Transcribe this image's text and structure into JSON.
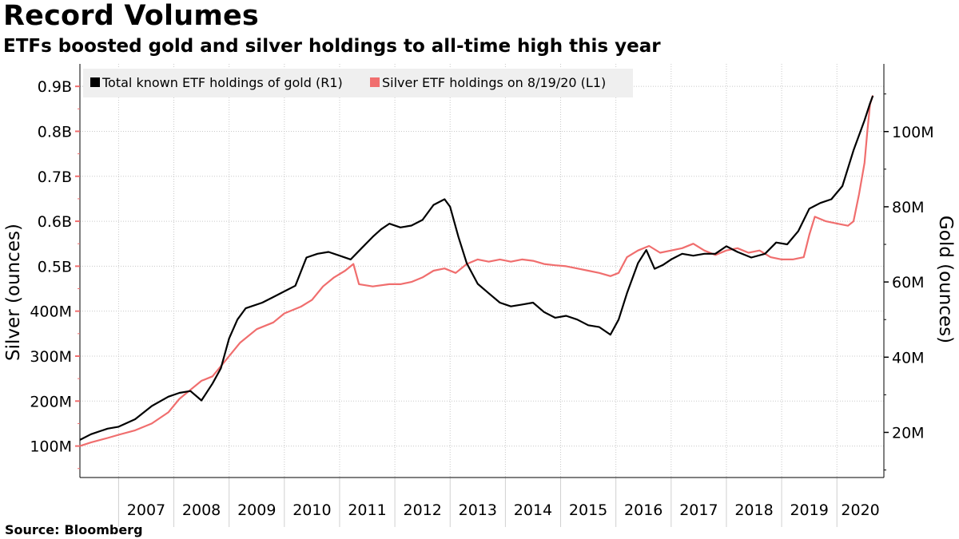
{
  "title": "Record Volumes",
  "subtitle": "ETFs boosted gold and silver holdings to all-time high this year",
  "source": {
    "label": "Source:",
    "value": "Bloomberg"
  },
  "chart_data": {
    "type": "line",
    "title": "Record Volumes",
    "subtitle": "ETFs boosted gold and silver holdings to all-time high this year",
    "xlabel": "",
    "x_ticks": [
      "2007",
      "2008",
      "2009",
      "2010",
      "2011",
      "2012",
      "2013",
      "2014",
      "2015",
      "2016",
      "2017",
      "2018",
      "2019",
      "2020"
    ],
    "xlim": [
      2006.3,
      2020.85
    ],
    "y_left": {
      "label": "Silver (ounces)",
      "range": [
        30000000,
        950000000
      ],
      "ticks": [
        100000000,
        200000000,
        300000000,
        400000000,
        500000000,
        600000000,
        700000000,
        800000000,
        900000000
      ],
      "tick_labels": [
        "100M",
        "200M",
        "300M",
        "400M",
        "0.5B",
        "0.6B",
        "0.7B",
        "0.8B",
        "0.9B"
      ]
    },
    "y_right": {
      "label": "Gold (ounces)",
      "range": [
        8000000,
        118000000
      ],
      "ticks": [
        20000000,
        40000000,
        60000000,
        80000000,
        100000000
      ],
      "tick_labels": [
        "20M",
        "40M",
        "60M",
        "80M",
        "100M"
      ]
    },
    "legend": {
      "position": "top-left"
    },
    "grid": true,
    "series": [
      {
        "name": "Total known ETF holdings of gold (R1)",
        "axis": "right",
        "color": "#000000",
        "points": [
          [
            2006.3,
            18.0
          ],
          [
            2006.5,
            19.5
          ],
          [
            2006.8,
            21.0
          ],
          [
            2007.0,
            21.5
          ],
          [
            2007.3,
            23.5
          ],
          [
            2007.6,
            27.0
          ],
          [
            2007.9,
            29.5
          ],
          [
            2008.1,
            30.5
          ],
          [
            2008.3,
            31.0
          ],
          [
            2008.5,
            28.5
          ],
          [
            2008.7,
            33.0
          ],
          [
            2008.85,
            37.0
          ],
          [
            2009.0,
            45.0
          ],
          [
            2009.15,
            50.0
          ],
          [
            2009.3,
            53.0
          ],
          [
            2009.6,
            54.5
          ],
          [
            2009.8,
            56.0
          ],
          [
            2010.0,
            57.5
          ],
          [
            2010.2,
            59.0
          ],
          [
            2010.4,
            66.5
          ],
          [
            2010.6,
            67.5
          ],
          [
            2010.8,
            68.0
          ],
          [
            2011.0,
            67.0
          ],
          [
            2011.2,
            66.0
          ],
          [
            2011.4,
            69.0
          ],
          [
            2011.6,
            72.0
          ],
          [
            2011.75,
            74.0
          ],
          [
            2011.9,
            75.5
          ],
          [
            2012.1,
            74.5
          ],
          [
            2012.3,
            75.0
          ],
          [
            2012.5,
            76.5
          ],
          [
            2012.7,
            80.5
          ],
          [
            2012.9,
            82.0
          ],
          [
            2013.0,
            80.0
          ],
          [
            2013.15,
            72.0
          ],
          [
            2013.3,
            65.0
          ],
          [
            2013.5,
            59.5
          ],
          [
            2013.7,
            57.0
          ],
          [
            2013.9,
            54.5
          ],
          [
            2014.1,
            53.5
          ],
          [
            2014.3,
            54.0
          ],
          [
            2014.5,
            54.5
          ],
          [
            2014.7,
            52.0
          ],
          [
            2014.9,
            50.5
          ],
          [
            2015.1,
            51.0
          ],
          [
            2015.3,
            50.0
          ],
          [
            2015.5,
            48.5
          ],
          [
            2015.7,
            48.0
          ],
          [
            2015.9,
            46.0
          ],
          [
            2016.05,
            50.0
          ],
          [
            2016.2,
            57.0
          ],
          [
            2016.4,
            65.0
          ],
          [
            2016.55,
            68.5
          ],
          [
            2016.7,
            63.5
          ],
          [
            2016.85,
            64.5
          ],
          [
            2017.0,
            66.0
          ],
          [
            2017.2,
            67.5
          ],
          [
            2017.4,
            67.0
          ],
          [
            2017.6,
            67.5
          ],
          [
            2017.8,
            67.5
          ],
          [
            2018.0,
            69.5
          ],
          [
            2018.2,
            68.0
          ],
          [
            2018.45,
            66.5
          ],
          [
            2018.7,
            67.5
          ],
          [
            2018.9,
            70.5
          ],
          [
            2019.1,
            70.0
          ],
          [
            2019.3,
            73.5
          ],
          [
            2019.5,
            79.5
          ],
          [
            2019.7,
            81.0
          ],
          [
            2019.9,
            82.0
          ],
          [
            2020.1,
            85.5
          ],
          [
            2020.3,
            95.0
          ],
          [
            2020.5,
            103.0
          ],
          [
            2020.6,
            107.5
          ],
          [
            2020.65,
            109.5
          ]
        ]
      },
      {
        "name": "Silver ETF holdings on 8/19/20 (L1)",
        "axis": "left",
        "color": "#f06e6e",
        "points": [
          [
            2006.3,
            100
          ],
          [
            2006.5,
            108
          ],
          [
            2006.8,
            118
          ],
          [
            2007.0,
            125
          ],
          [
            2007.3,
            135
          ],
          [
            2007.6,
            150
          ],
          [
            2007.9,
            175
          ],
          [
            2008.1,
            205
          ],
          [
            2008.3,
            225
          ],
          [
            2008.5,
            245
          ],
          [
            2008.7,
            255
          ],
          [
            2008.9,
            285
          ],
          [
            2009.2,
            330
          ],
          [
            2009.5,
            360
          ],
          [
            2009.8,
            375
          ],
          [
            2010.0,
            395
          ],
          [
            2010.3,
            410
          ],
          [
            2010.5,
            425
          ],
          [
            2010.7,
            455
          ],
          [
            2010.9,
            475
          ],
          [
            2011.1,
            490
          ],
          [
            2011.25,
            505
          ],
          [
            2011.35,
            460
          ],
          [
            2011.6,
            455
          ],
          [
            2011.9,
            460
          ],
          [
            2012.1,
            460
          ],
          [
            2012.3,
            465
          ],
          [
            2012.5,
            475
          ],
          [
            2012.7,
            490
          ],
          [
            2012.9,
            495
          ],
          [
            2013.1,
            485
          ],
          [
            2013.3,
            505
          ],
          [
            2013.5,
            515
          ],
          [
            2013.7,
            510
          ],
          [
            2013.9,
            515
          ],
          [
            2014.1,
            510
          ],
          [
            2014.3,
            515
          ],
          [
            2014.5,
            512
          ],
          [
            2014.7,
            505
          ],
          [
            2014.9,
            502
          ],
          [
            2015.1,
            500
          ],
          [
            2015.3,
            495
          ],
          [
            2015.5,
            490
          ],
          [
            2015.7,
            485
          ],
          [
            2015.9,
            478
          ],
          [
            2016.05,
            485
          ],
          [
            2016.2,
            520
          ],
          [
            2016.4,
            535
          ],
          [
            2016.6,
            545
          ],
          [
            2016.8,
            530
          ],
          [
            2017.0,
            535
          ],
          [
            2017.2,
            540
          ],
          [
            2017.4,
            550
          ],
          [
            2017.6,
            535
          ],
          [
            2017.8,
            525
          ],
          [
            2018.0,
            535
          ],
          [
            2018.2,
            540
          ],
          [
            2018.4,
            530
          ],
          [
            2018.6,
            535
          ],
          [
            2018.8,
            520
          ],
          [
            2019.0,
            515
          ],
          [
            2019.2,
            515
          ],
          [
            2019.4,
            520
          ],
          [
            2019.5,
            570
          ],
          [
            2019.6,
            610
          ],
          [
            2019.8,
            600
          ],
          [
            2020.0,
            595
          ],
          [
            2020.2,
            590
          ],
          [
            2020.3,
            600
          ],
          [
            2020.4,
            660
          ],
          [
            2020.5,
            730
          ],
          [
            2020.55,
            800
          ],
          [
            2020.6,
            860
          ],
          [
            2020.65,
            880
          ]
        ]
      }
    ]
  }
}
